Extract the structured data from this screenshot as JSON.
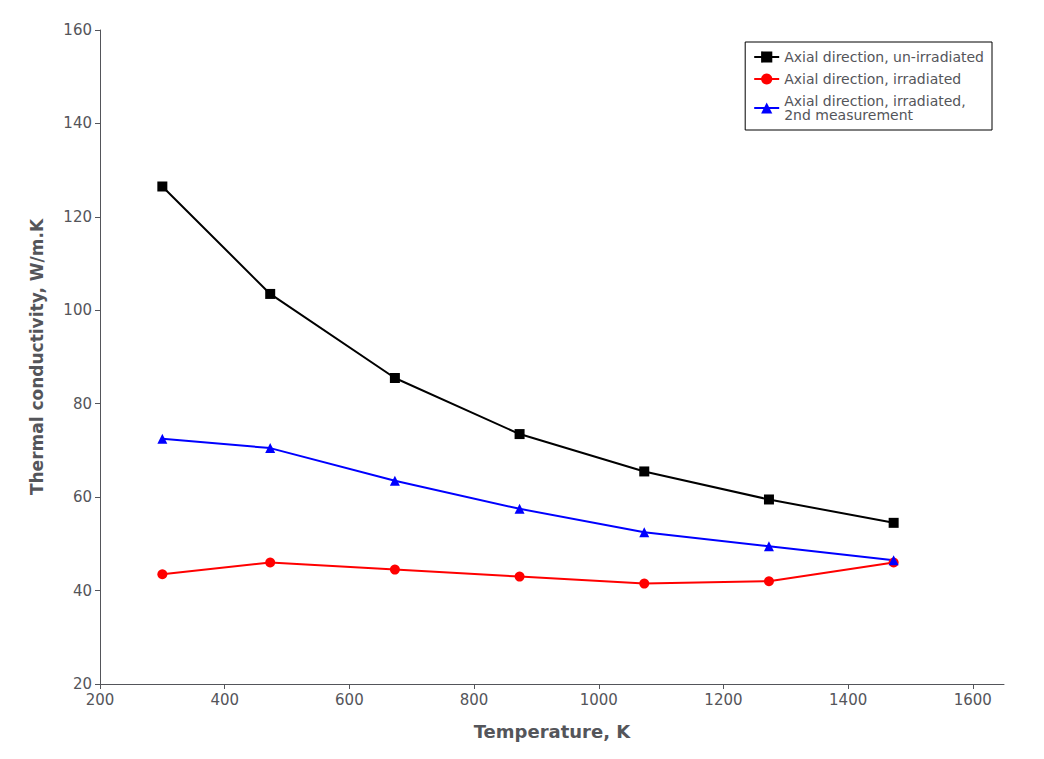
{
  "chart_data": {
    "type": "line",
    "xlabel": "Temperature, K",
    "ylabel": "Thermal conductivity, W/m.K",
    "x": [
      300,
      473,
      673,
      873,
      1073,
      1273,
      1473
    ],
    "series": [
      {
        "name": "Axial direction, un-irradiated",
        "color": "#000000",
        "marker": "square",
        "values": [
          126.5,
          103.5,
          85.5,
          73.5,
          65.5,
          59.5,
          54.5
        ]
      },
      {
        "name": "Axial direction, irradiated",
        "color": "#ff0000",
        "marker": "circle",
        "values": [
          43.5,
          46.0,
          44.5,
          43.0,
          41.5,
          42.0,
          46.0
        ]
      },
      {
        "name": "Axial direction, irradiated,\n2nd measurement",
        "color": "#0000ff",
        "marker": "triangle",
        "values": [
          72.5,
          70.5,
          63.5,
          57.5,
          52.5,
          49.5,
          46.5
        ]
      }
    ],
    "xlim": [
      200,
      1650
    ],
    "ylim": [
      20,
      160
    ],
    "xticks": [
      200,
      400,
      600,
      800,
      1000,
      1200,
      1400,
      1600
    ],
    "yticks": [
      20,
      40,
      60,
      80,
      100,
      120,
      140,
      160
    ],
    "grid": false,
    "legend": "upper right"
  }
}
